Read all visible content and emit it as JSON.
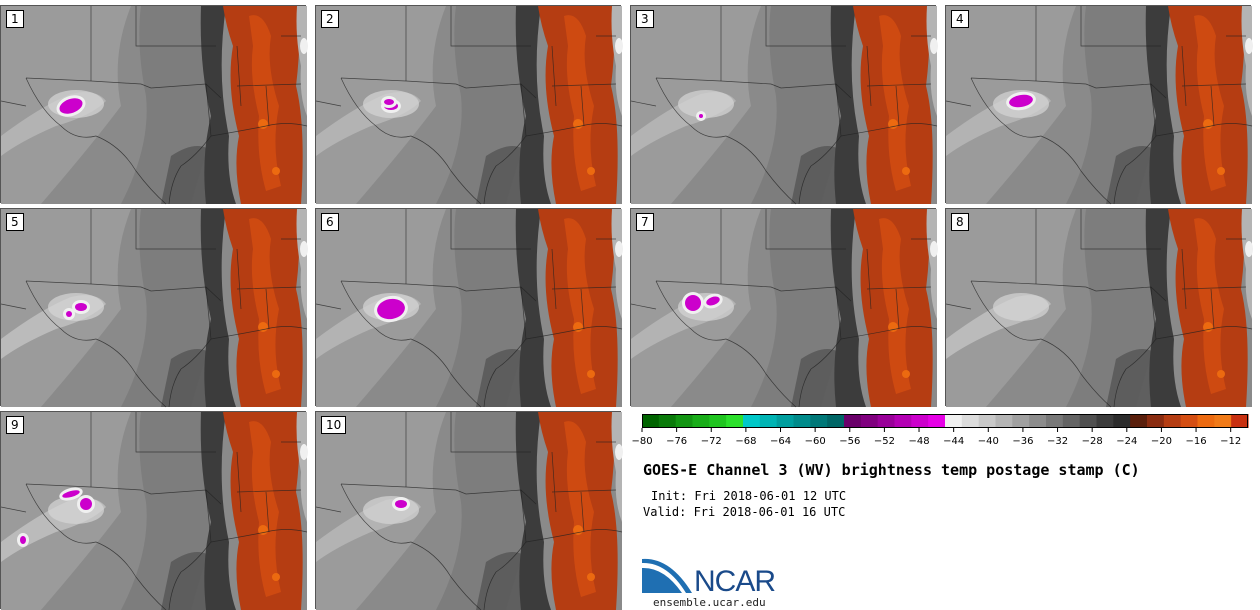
{
  "panels": [
    {
      "label": "1"
    },
    {
      "label": "2"
    },
    {
      "label": "3"
    },
    {
      "label": "4"
    },
    {
      "label": "5"
    },
    {
      "label": "6"
    },
    {
      "label": "7"
    },
    {
      "label": "8"
    },
    {
      "label": "9"
    },
    {
      "label": "10"
    }
  ],
  "chart_data": {
    "type": "heatmap",
    "title": "GOES-E Channel 3 (WV) brightness temp postage stamp (C)",
    "init": "Init: Fri 2018-06-01 12 UTC",
    "valid": "Valid: Fri 2018-06-01 16 UTC",
    "colorbar": {
      "range": [
        -80,
        -10
      ],
      "step": 2,
      "tick_labels": [
        "−80",
        "−76",
        "−72",
        "−68",
        "−64",
        "−60",
        "−56",
        "−52",
        "−48",
        "−44",
        "−40",
        "−36",
        "−32",
        "−28",
        "−24",
        "−20",
        "−16",
        "−12"
      ],
      "colors": [
        "#006400",
        "#0a7a0a",
        "#129512",
        "#19ad19",
        "#20c520",
        "#2ce02c",
        "#00c8c8",
        "#00b4b4",
        "#009f9f",
        "#008b8b",
        "#007878",
        "#006666",
        "#6a006a",
        "#80007f",
        "#990099",
        "#b300b3",
        "#cc00cc",
        "#e600e6",
        "#f0f0f0",
        "#dcdcdc",
        "#c8c8c8",
        "#b4b4b4",
        "#a0a0a0",
        "#8c8c8c",
        "#787878",
        "#646464",
        "#505050",
        "#3c3c3c",
        "#2c2c2c",
        "#5a1f0c",
        "#8a2c10",
        "#b53d12",
        "#d44e12",
        "#ec6a10",
        "#f07a18",
        "#c83010"
      ]
    }
  },
  "logo": {
    "text": "NCAR",
    "url": "ensemble.ucar.edu"
  }
}
